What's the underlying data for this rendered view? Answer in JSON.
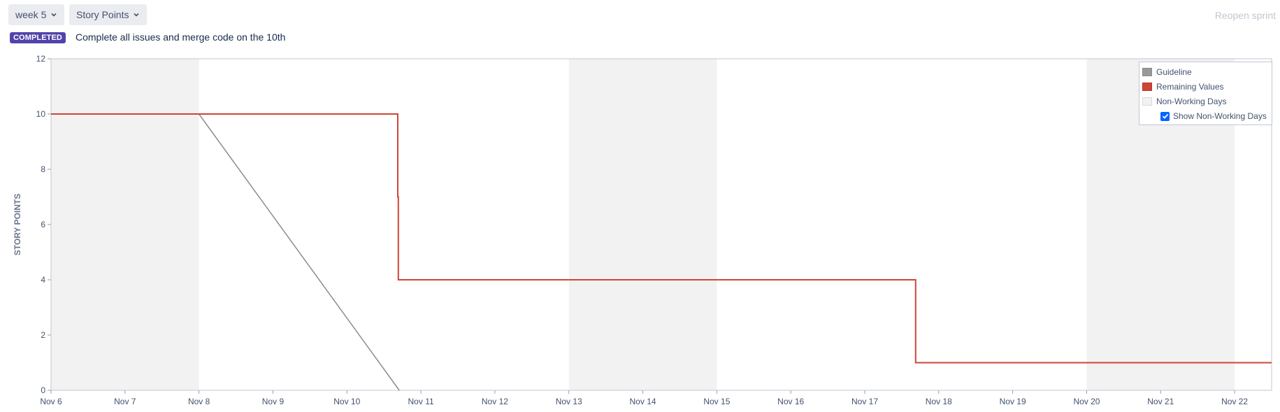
{
  "toolbar": {
    "sprint_select": "week 5",
    "metric_select": "Story Points",
    "reopen_label": "Reopen sprint"
  },
  "sprint": {
    "status_badge": "COMPLETED",
    "goal": "Complete all issues and merge code on the 10th"
  },
  "legend": {
    "guideline": "Guideline",
    "remaining": "Remaining Values",
    "non_working": "Non-Working Days",
    "show_non_working": "Show Non-Working Days",
    "show_non_working_checked": true
  },
  "colors": {
    "guideline": "#8c8c8c",
    "remaining": "#d04437",
    "non_working": "#f2f2f2",
    "badge": "#5243aa",
    "checkbox": "#0065ff"
  },
  "chart_data": {
    "type": "line",
    "ylabel": "STORY POINTS",
    "ylim": [
      0,
      12
    ],
    "yticks": [
      0,
      2,
      4,
      6,
      8,
      10,
      12
    ],
    "xlim": [
      "Nov 6",
      "Nov 22 12:00"
    ],
    "xticks": [
      "Nov 6",
      "Nov 7",
      "Nov 8",
      "Nov 9",
      "Nov 10",
      "Nov 11",
      "Nov 12",
      "Nov 13",
      "Nov 14",
      "Nov 15",
      "Nov 16",
      "Nov 17",
      "Nov 18",
      "Nov 19",
      "Nov 20",
      "Nov 21",
      "Nov 22"
    ],
    "non_working_days": [
      [
        "Nov 6",
        "Nov 8"
      ],
      [
        "Nov 13",
        "Nov 15"
      ],
      [
        "Nov 20",
        "Nov 22"
      ]
    ],
    "series": [
      {
        "name": "Guideline",
        "x": [
          "Nov 6",
          "Nov 8",
          "Nov 10 17:00"
        ],
        "y": [
          10,
          10,
          0
        ]
      },
      {
        "name": "Remaining Values",
        "step": true,
        "x": [
          "Nov 6",
          "Nov 10 16:30",
          "Nov 10 16:30",
          "Nov 10 16:40",
          "Nov 17 16:30",
          "Nov 22 12:00"
        ],
        "y": [
          10,
          10,
          7,
          4,
          1,
          1
        ]
      }
    ],
    "grid": false,
    "legend_position": "top-right"
  }
}
